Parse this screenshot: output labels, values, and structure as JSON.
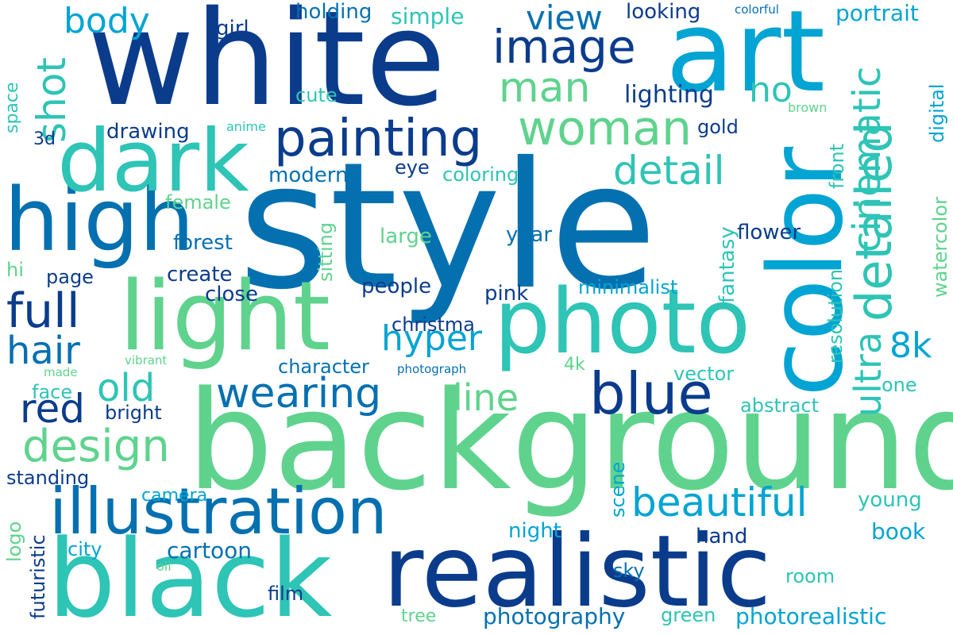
{
  "palette": {
    "navy": "#0b3c8c",
    "blue": "#0570b0",
    "sky": "#02a4d3",
    "teal": "#2ec4b6",
    "green": "#5fd38d"
  },
  "words": {
    "style": "style",
    "background": "background",
    "white": "white",
    "art": "art",
    "color": "color",
    "light": "light",
    "photo": "photo",
    "realistic": "realistic",
    "black": "black",
    "high": "high",
    "dark": "dark",
    "illustration": "illustration",
    "painting": "painting",
    "woman": "woman",
    "image": "image",
    "detailed": "detailed",
    "blue": "blue",
    "wearing": "wearing",
    "beautiful": "beautiful",
    "design": "design",
    "full": "full",
    "hair": "hair",
    "red": "red",
    "old": "old",
    "cinematic": "cinematic",
    "ultra": "ultra",
    "man": "man",
    "view": "view",
    "detail": "detail",
    "hyper": "hyper",
    "line": "line",
    "body": "body",
    "shot": "shot",
    "8k": "8k",
    "no": "no",
    "holding": "holding",
    "simple": "simple",
    "looking": "looking",
    "colorful": "colorful",
    "portrait": "portrait",
    "girl": "girl",
    "lighting": "lighting",
    "cute": "cute",
    "brown": "brown",
    "space": "space",
    "anime": "anime",
    "drawing": "drawing",
    "gold": "gold",
    "digital": "digital",
    "3d": "3d",
    "eye": "eye",
    "modern": "modern",
    "coloring": "coloring",
    "female": "female",
    "front": "front",
    "forest": "forest",
    "fantasy": "fantasy",
    "large": "large",
    "year": "year",
    "flower": "flower",
    "sitting": "sitting",
    "hi": "hi",
    "page": "page",
    "create": "create",
    "resolution": "resolution",
    "watercolor": "watercolor",
    "close": "close",
    "people": "people",
    "pink": "pink",
    "minimalist": "minimalist",
    "christma": "christma",
    "character": "character",
    "photograph": "photograph",
    "4k": "4k",
    "made": "made",
    "vibrant": "vibrant",
    "vector": "vector",
    "face": "face",
    "one": "one",
    "bright": "bright",
    "abstract": "abstract",
    "standing": "standing",
    "scene": "scene",
    "camera": "camera",
    "young": "young",
    "logo": "logo",
    "futuristic": "futuristic",
    "city": "city",
    "cartoon": "cartoon",
    "night": "night",
    "hand": "hand",
    "book": "book",
    "oil": "oil",
    "sky": "sky",
    "room": "room",
    "film": "film",
    "tree": "tree",
    "photography": "photography",
    "green": "green",
    "photorealistic": "photorealistic"
  }
}
